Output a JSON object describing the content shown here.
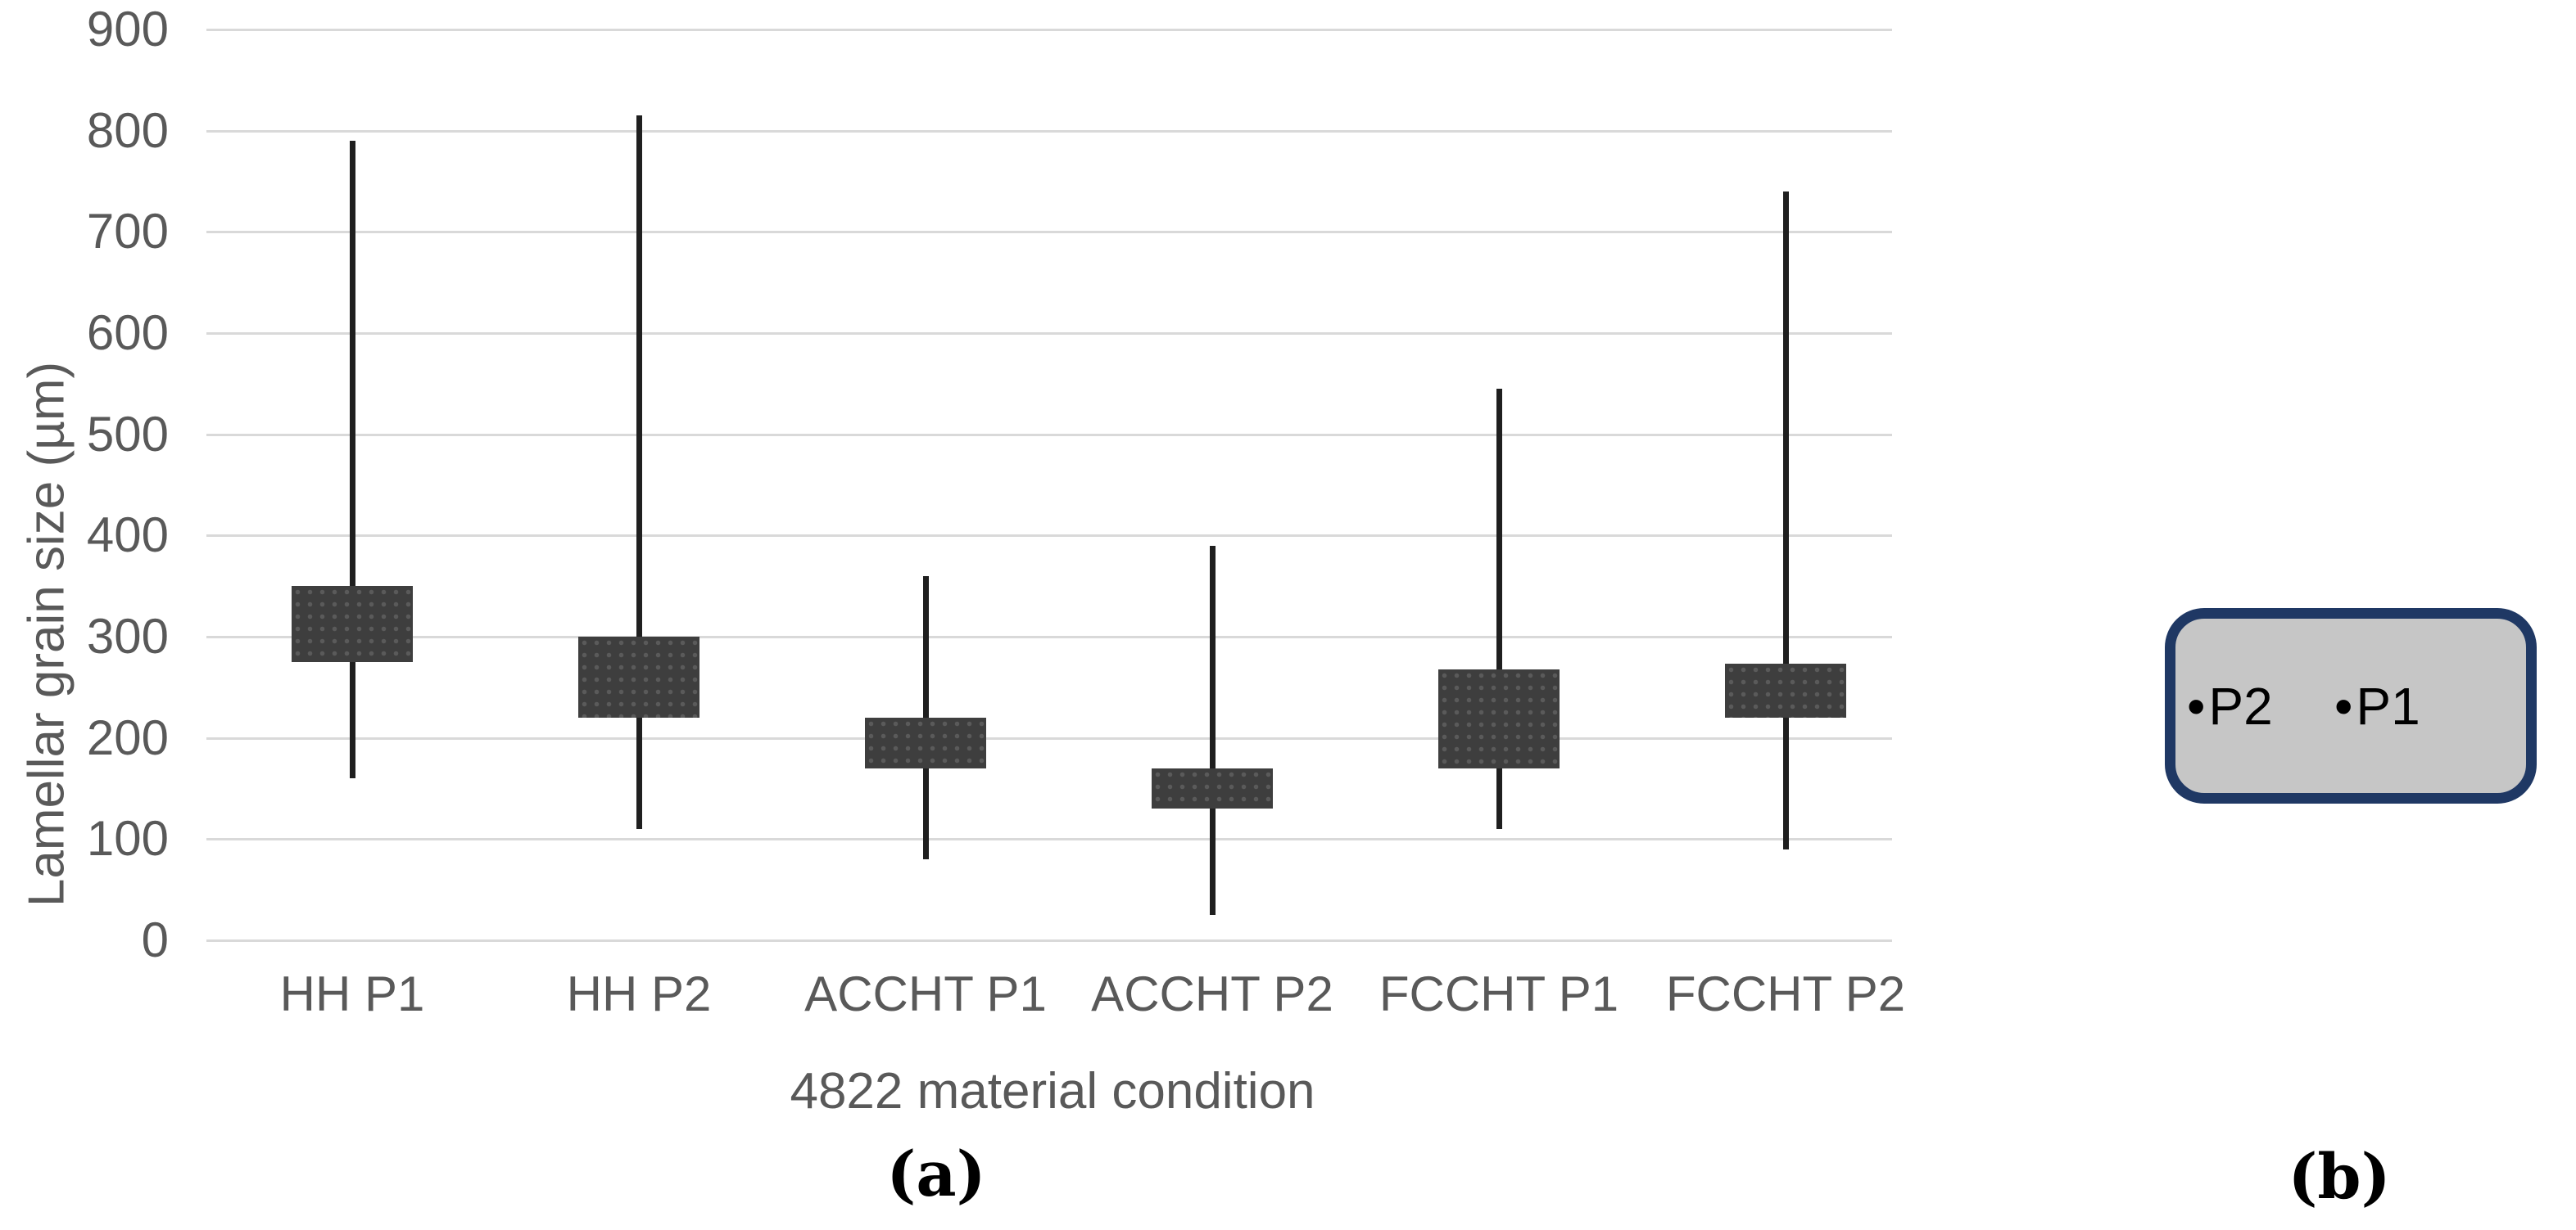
{
  "figure": {
    "caption_a": "(a)",
    "caption_b": "(b)"
  },
  "chart_data": {
    "type": "box-whisker",
    "title": "",
    "xlabel": "4822 material condition",
    "ylabel": "Lamellar grain size (µm)",
    "ylim": [
      0,
      900
    ],
    "yticks": [
      900,
      800,
      700,
      600,
      500,
      400,
      300,
      200,
      100,
      0
    ],
    "grid": true,
    "legend": "none",
    "categories": [
      "HH P1",
      "HH P2",
      "ACCHT P1",
      "ACCHT P2",
      "FCCHT P1",
      "FCCHT P2"
    ],
    "series": [
      {
        "category": "HH P1",
        "whisker_min": 160,
        "box_low": 275,
        "box_high": 350,
        "whisker_max": 790
      },
      {
        "category": "HH P2",
        "whisker_min": 110,
        "box_low": 220,
        "box_high": 300,
        "whisker_max": 815
      },
      {
        "category": "ACCHT P1",
        "whisker_min": 80,
        "box_low": 170,
        "box_high": 220,
        "whisker_max": 360
      },
      {
        "category": "ACCHT P2",
        "whisker_min": 25,
        "box_low": 130,
        "box_high": 170,
        "whisker_max": 390
      },
      {
        "category": "FCCHT P1",
        "whisker_min": 110,
        "box_low": 170,
        "box_high": 268,
        "whisker_max": 545
      },
      {
        "category": "FCCHT P2",
        "whisker_min": 90,
        "box_low": 220,
        "box_high": 273,
        "whisker_max": 740
      }
    ],
    "colors": {
      "box_fill": "#3e3e3e",
      "whisker": "#1f1f1f",
      "gridline": "#d9d9d9",
      "axis_text": "#595959"
    }
  },
  "panel_b": {
    "bullet": "•",
    "points": [
      {
        "label": "P2"
      },
      {
        "label": "P1"
      }
    ],
    "fill_color": "#c6c6c6",
    "border_color": "#1f3864"
  }
}
